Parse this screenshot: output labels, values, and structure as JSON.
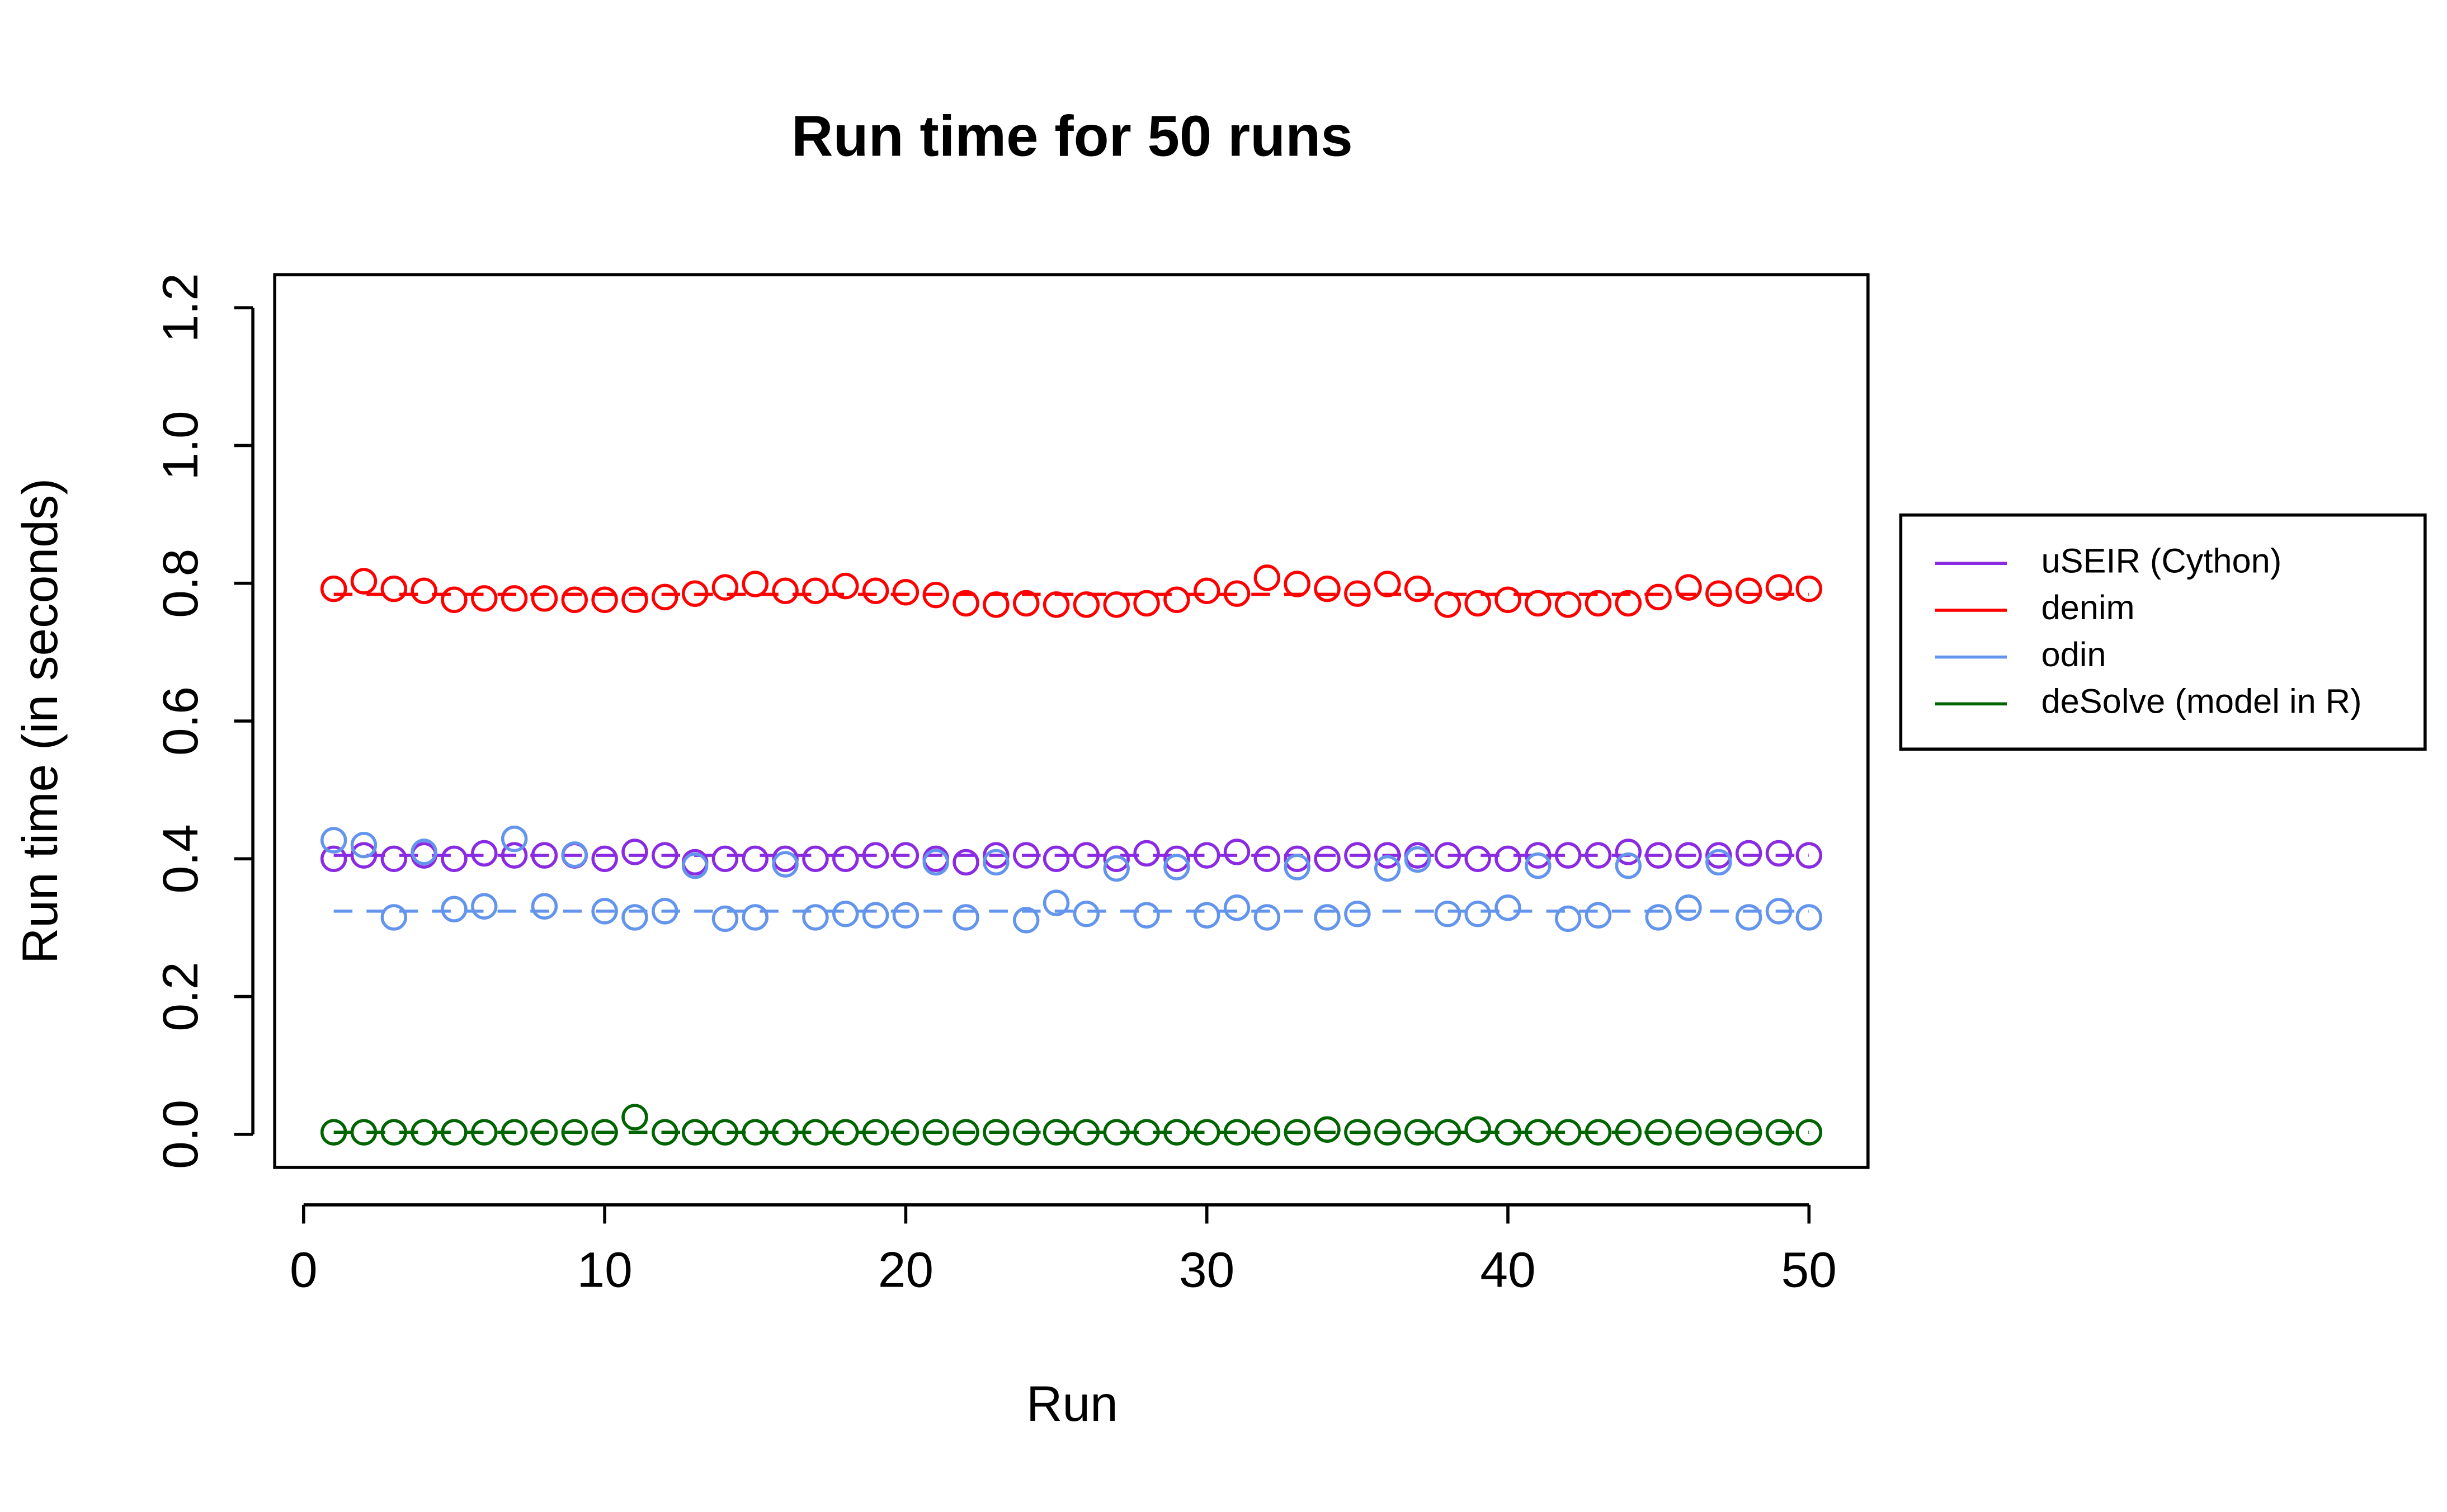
{
  "chart_data": {
    "type": "scatter",
    "title": "Run time for 50 runs",
    "x_label": "Run",
    "y_label": "Run time (in seconds)",
    "x": [
      1,
      2,
      3,
      4,
      5,
      6,
      7,
      8,
      9,
      10,
      11,
      12,
      13,
      14,
      15,
      16,
      17,
      18,
      19,
      20,
      21,
      22,
      23,
      24,
      25,
      26,
      27,
      28,
      29,
      30,
      31,
      32,
      33,
      34,
      35,
      36,
      37,
      38,
      39,
      40,
      41,
      42,
      43,
      44,
      45,
      46,
      47,
      48,
      49,
      50
    ],
    "series": [
      {
        "name": "uSEIR (Cython)",
        "color": "#8A2BE2",
        "values": [
          0.4,
          0.405,
          0.4,
          0.405,
          0.4,
          0.408,
          0.405,
          0.405,
          0.405,
          0.4,
          0.41,
          0.405,
          0.395,
          0.4,
          0.4,
          0.4,
          0.4,
          0.4,
          0.405,
          0.405,
          0.4,
          0.395,
          0.405,
          0.405,
          0.4,
          0.405,
          0.4,
          0.408,
          0.4,
          0.405,
          0.41,
          0.4,
          0.4,
          0.4,
          0.405,
          0.405,
          0.405,
          0.405,
          0.4,
          0.4,
          0.405,
          0.405,
          0.405,
          0.41,
          0.405,
          0.405,
          0.405,
          0.408,
          0.408,
          0.405
        ]
      },
      {
        "name": "denim",
        "color": "#FF0000",
        "values": [
          0.792,
          0.803,
          0.792,
          0.789,
          0.776,
          0.778,
          0.778,
          0.778,
          0.776,
          0.776,
          0.776,
          0.78,
          0.785,
          0.794,
          0.799,
          0.789,
          0.789,
          0.796,
          0.789,
          0.787,
          0.783,
          0.771,
          0.769,
          0.771,
          0.769,
          0.769,
          0.769,
          0.771,
          0.776,
          0.789,
          0.785,
          0.808,
          0.799,
          0.792,
          0.785,
          0.799,
          0.792,
          0.769,
          0.771,
          0.776,
          0.771,
          0.769,
          0.771,
          0.771,
          0.78,
          0.794,
          0.785,
          0.789,
          0.794,
          0.792
        ]
      },
      {
        "name": "odin",
        "color": "#6495ED",
        "values": [
          0.427,
          0.42,
          0.315,
          0.41,
          0.327,
          0.331,
          0.429,
          0.331,
          0.406,
          0.324,
          0.315,
          0.324,
          0.39,
          0.313,
          0.315,
          0.392,
          0.315,
          0.32,
          0.318,
          0.318,
          0.395,
          0.315,
          0.395,
          0.311,
          0.336,
          0.32,
          0.386,
          0.318,
          0.388,
          0.318,
          0.329,
          0.315,
          0.388,
          0.315,
          0.32,
          0.386,
          0.399,
          0.32,
          0.32,
          0.329,
          0.39,
          0.313,
          0.318,
          0.39,
          0.315,
          0.329,
          0.395,
          0.315,
          0.324,
          0.315
        ]
      },
      {
        "name": "deSolve (model in R)",
        "color": "#006400",
        "values": [
          0.003,
          0.003,
          0.003,
          0.003,
          0.003,
          0.003,
          0.003,
          0.003,
          0.003,
          0.003,
          0.025,
          0.003,
          0.003,
          0.003,
          0.003,
          0.003,
          0.003,
          0.003,
          0.003,
          0.003,
          0.003,
          0.003,
          0.003,
          0.003,
          0.003,
          0.003,
          0.003,
          0.003,
          0.003,
          0.003,
          0.003,
          0.003,
          0.003,
          0.007,
          0.003,
          0.003,
          0.003,
          0.003,
          0.007,
          0.003,
          0.003,
          0.003,
          0.003,
          0.003,
          0.003,
          0.003,
          0.003,
          0.003,
          0.003,
          0.003
        ]
      }
    ],
    "xlim": [
      -0.96,
      51.96
    ],
    "xticks": [
      0,
      10,
      20,
      30,
      40,
      50
    ],
    "ylim": [
      -0.048,
      1.248
    ],
    "yticks": [
      {
        "value": 0,
        "label": "0.0"
      },
      0.2,
      0.4,
      0.6,
      0.8,
      {
        "value": 1,
        "label": "1.0"
      },
      1.2
    ],
    "legend": "right"
  }
}
